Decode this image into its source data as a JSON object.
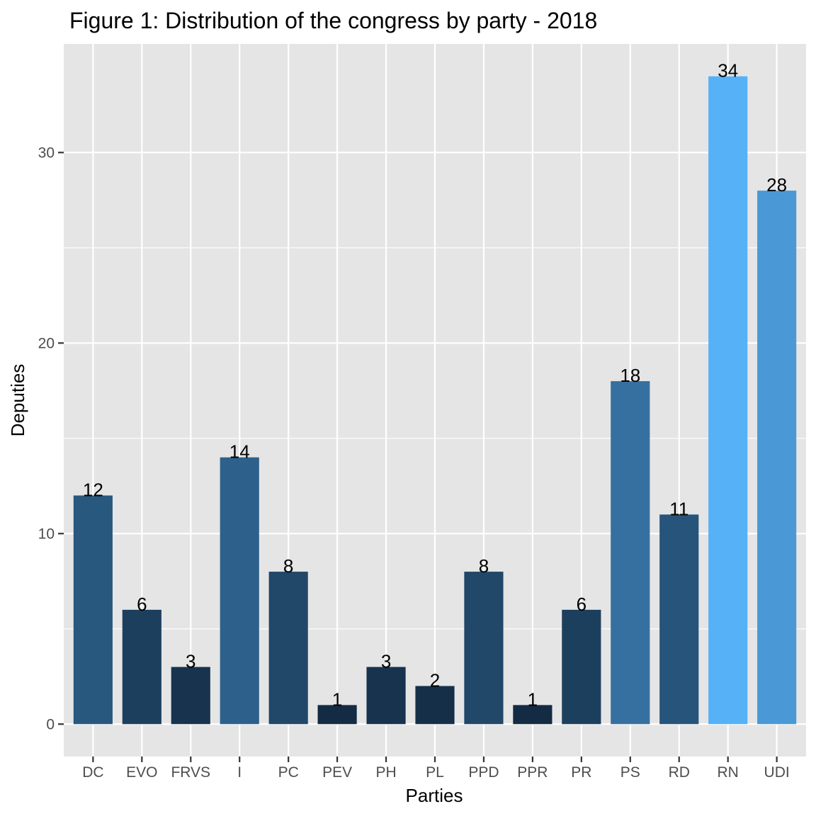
{
  "chart_data": {
    "type": "bar",
    "title": "Figure 1: Distribution of the congress by party - 2018",
    "xlabel": "Parties",
    "ylabel": "Deputies",
    "categories": [
      "DC",
      "EVO",
      "FRVS",
      "I",
      "PC",
      "PEV",
      "PH",
      "PL",
      "PPD",
      "PPR",
      "PR",
      "PS",
      "RD",
      "RN",
      "UDI"
    ],
    "values": [
      12,
      6,
      3,
      14,
      8,
      1,
      3,
      2,
      8,
      1,
      6,
      18,
      11,
      34,
      28
    ],
    "data_labels": [
      "12",
      "6",
      "3",
      "14",
      "8",
      "1",
      "3",
      "2",
      "8",
      "1",
      "6",
      "18",
      "11",
      "34",
      "28"
    ],
    "ylim": [
      -1.7,
      35.7
    ],
    "yticks": [
      0,
      10,
      20,
      30
    ],
    "ytick_labels": [
      "0",
      "10",
      "20",
      "30"
    ],
    "grid": true,
    "legend": "none",
    "fill_scale": {
      "low": "#132B43",
      "high": "#56B1F7"
    },
    "panel_background": "#E5E5E5",
    "grid_color": "#FFFFFF"
  }
}
